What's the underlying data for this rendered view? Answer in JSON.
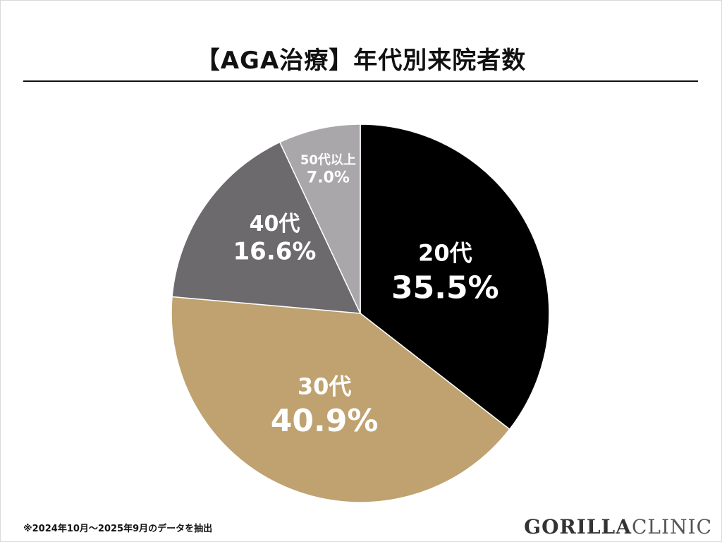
{
  "title": "【AGA治療】年代別来院者数",
  "footnote": "※2024年10月〜2025年9月のデータを抽出",
  "logo": {
    "brand": "GORILLA",
    "suffix": "CLINIC"
  },
  "chart_data": {
    "type": "pie",
    "title": "【AGA治療】年代別来院者数",
    "slices": [
      {
        "label": "20代",
        "value": 35.5,
        "value_label": "35.5%",
        "color": "#000000"
      },
      {
        "label": "30代",
        "value": 40.9,
        "value_label": "40.9%",
        "color": "#bfa270"
      },
      {
        "label": "40代",
        "value": 16.6,
        "value_label": "16.6%",
        "color": "#6c6a6d"
      },
      {
        "label": "50代以上",
        "value": 7.0,
        "value_label": "7.0%",
        "color": "#a9a7aa"
      }
    ],
    "start": "12 o'clock",
    "direction": "clockwise"
  }
}
